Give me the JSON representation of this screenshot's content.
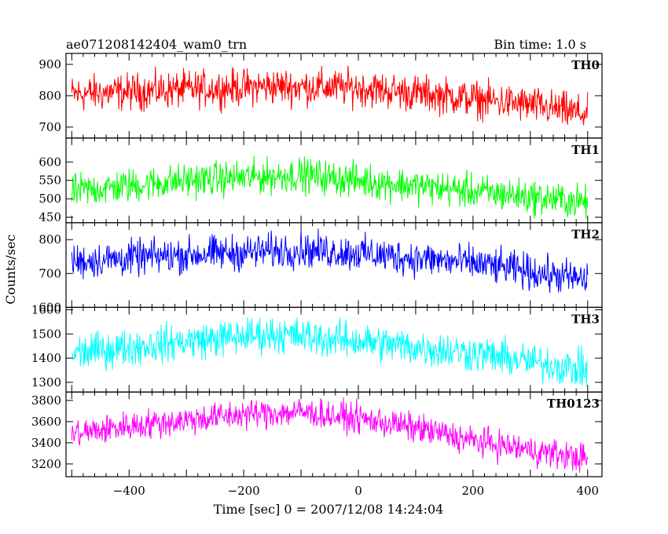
{
  "header": {
    "left": "ae071208142404_wam0_trn",
    "right": "Bin time: 1.0 s"
  },
  "chart_data": {
    "type": "line",
    "xlabel": "Time [sec] 0 = 2007/12/08 14:24:04",
    "ylabel": "Counts/sec",
    "xlim": [
      -510,
      425
    ],
    "data_x_range": [
      -500,
      400
    ],
    "x_ticks": [
      -400,
      -200,
      0,
      200,
      400
    ],
    "bin_time_s": 1.0,
    "grid": false,
    "panels": [
      {
        "name": "TH0",
        "color": "#ff0000",
        "ylim": [
          665,
          935
        ],
        "y_ticks": [
          700,
          800,
          900
        ],
        "level_points": [
          [
            -500,
            805
          ],
          [
            -300,
            820
          ],
          [
            -150,
            830
          ],
          [
            0,
            825
          ],
          [
            150,
            800
          ],
          [
            300,
            770
          ],
          [
            400,
            740
          ]
        ],
        "noise_amplitude": 50
      },
      {
        "name": "TH1",
        "color": "#00ff00",
        "ylim": [
          435,
          665
        ],
        "y_ticks": [
          450,
          500,
          550,
          600
        ],
        "level_points": [
          [
            -500,
            520
          ],
          [
            -300,
            550
          ],
          [
            -100,
            565
          ],
          [
            0,
            550
          ],
          [
            200,
            520
          ],
          [
            400,
            490
          ]
        ],
        "noise_amplitude": 40
      },
      {
        "name": "TH2",
        "color": "#0000ff",
        "ylim": [
          600,
          850
        ],
        "y_ticks": [
          600,
          700,
          800
        ],
        "level_points": [
          [
            -500,
            735
          ],
          [
            -300,
            755
          ],
          [
            -100,
            770
          ],
          [
            0,
            760
          ],
          [
            200,
            730
          ],
          [
            400,
            680
          ]
        ],
        "noise_amplitude": 45
      },
      {
        "name": "TH3",
        "color": "#00ffff",
        "ylim": [
          1260,
          1610
        ],
        "y_ticks": [
          1300,
          1400,
          1500,
          1600
        ],
        "level_points": [
          [
            -500,
            1420
          ],
          [
            -300,
            1470
          ],
          [
            -150,
            1500
          ],
          [
            0,
            1470
          ],
          [
            200,
            1420
          ],
          [
            400,
            1350
          ]
        ],
        "noise_amplitude": 65
      },
      {
        "name": "TH0123",
        "color": "#ff00ff",
        "ylim": [
          3080,
          3880
        ],
        "y_ticks": [
          3200,
          3400,
          3600,
          3800
        ],
        "level_points": [
          [
            -500,
            3480
          ],
          [
            -400,
            3560
          ],
          [
            -200,
            3670
          ],
          [
            -100,
            3690
          ],
          [
            0,
            3630
          ],
          [
            100,
            3540
          ],
          [
            200,
            3420
          ],
          [
            300,
            3330
          ],
          [
            400,
            3250
          ]
        ],
        "noise_amplitude": 120
      }
    ]
  }
}
